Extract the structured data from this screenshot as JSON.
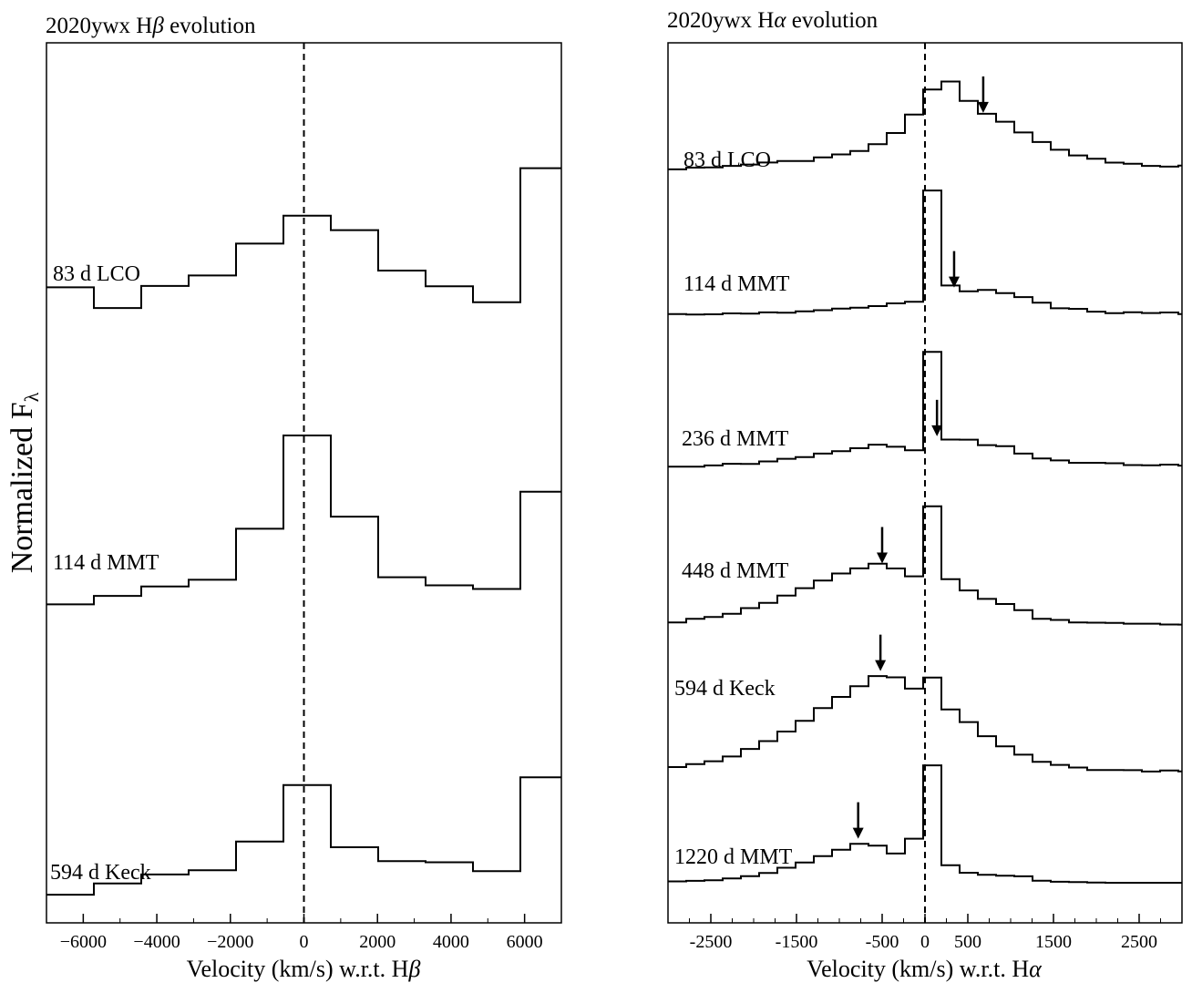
{
  "figure": {
    "ylabel": "Normalized F",
    "ylabel_sub": "λ"
  },
  "chart_data": [
    {
      "type": "line",
      "id": "hbeta",
      "title_prefix": "2020ywx H",
      "title_greek": "β",
      "title_suffix": " evolution",
      "xlabel_prefix": "Velocity (km/s) w.r.t. H",
      "xlabel_greek": "β",
      "xlim": [
        -7000,
        7000
      ],
      "xticks": [
        -6000,
        -4000,
        -2000,
        0,
        2000,
        4000,
        6000
      ],
      "xtick_labels": [
        "−6000",
        "−4000",
        "−2000",
        "0",
        "2000",
        "4000",
        "6000"
      ],
      "reference_line_x": 0,
      "series": [
        {
          "name": "83 d LCO",
          "noise": 9,
          "seed": 3,
          "points": [
            [
              -7000,
              0.3
            ],
            [
              -6000,
              0.26
            ],
            [
              -5000,
              0.24
            ],
            [
              -4000,
              0.38
            ],
            [
              -3000,
              0.4
            ],
            [
              -2000,
              0.52
            ],
            [
              -1000,
              0.56
            ],
            [
              -500,
              0.75
            ],
            [
              -150,
              0.97
            ],
            [
              0,
              1.0
            ],
            [
              200,
              0.83
            ],
            [
              500,
              0.67
            ],
            [
              1000,
              0.54
            ],
            [
              2000,
              0.4
            ],
            [
              3000,
              0.34
            ],
            [
              4000,
              0.3
            ],
            [
              4800,
              0.28
            ],
            [
              5500,
              0.45
            ],
            [
              5900,
              0.97
            ],
            [
              6100,
              0.97
            ],
            [
              6400,
              0.4
            ],
            [
              6800,
              0.18
            ],
            [
              7000,
              0.12
            ]
          ]
        },
        {
          "name": "114 d MMT",
          "noise": 12,
          "seed": 7,
          "points": [
            [
              -7000,
              0.22
            ],
            [
              -6000,
              0.2
            ],
            [
              -5000,
              0.25
            ],
            [
              -4000,
              0.28
            ],
            [
              -3000,
              0.32
            ],
            [
              -2000,
              0.5
            ],
            [
              -1000,
              0.76
            ],
            [
              -500,
              0.92
            ],
            [
              -150,
              1.0
            ],
            [
              0,
              0.98
            ],
            [
              300,
              0.83
            ],
            [
              600,
              0.68
            ],
            [
              1000,
              0.52
            ],
            [
              1500,
              0.4
            ],
            [
              2000,
              0.34
            ],
            [
              3000,
              0.3
            ],
            [
              4000,
              0.26
            ],
            [
              4700,
              0.26
            ],
            [
              5300,
              0.38
            ],
            [
              5800,
              0.72
            ],
            [
              6100,
              0.74
            ],
            [
              6400,
              0.5
            ],
            [
              6800,
              0.22
            ],
            [
              7000,
              0.15
            ]
          ]
        },
        {
          "name": "594 d Keck",
          "noise": 7,
          "seed": 11,
          "points": [
            [
              -7000,
              0.08
            ],
            [
              -6000,
              0.09
            ],
            [
              -5000,
              0.1
            ],
            [
              -4000,
              0.13
            ],
            [
              -3000,
              0.14
            ],
            [
              -2500,
              0.18
            ],
            [
              -2000,
              0.24
            ],
            [
              -1500,
              0.34
            ],
            [
              -1000,
              0.44
            ],
            [
              -600,
              0.46
            ],
            [
              -300,
              0.42
            ],
            [
              -100,
              0.4
            ],
            [
              0,
              1.0
            ],
            [
              100,
              0.98
            ],
            [
              200,
              0.3
            ],
            [
              400,
              0.24
            ],
            [
              1000,
              0.22
            ],
            [
              2000,
              0.2
            ],
            [
              3000,
              0.18
            ],
            [
              4000,
              0.16
            ],
            [
              5000,
              0.15
            ],
            [
              5800,
              0.14
            ],
            [
              5950,
              0.8
            ],
            [
              6050,
              0.82
            ],
            [
              6150,
              0.16
            ],
            [
              6500,
              0.13
            ],
            [
              7000,
              0.12
            ]
          ]
        }
      ]
    },
    {
      "type": "line",
      "id": "halpha",
      "title_prefix": "2020ywx H",
      "title_greek": "α",
      "title_suffix": " evolution",
      "xlabel_prefix": "Velocity (km/s) w.r.t. H",
      "xlabel_greek": "α",
      "xlim": [
        -3000,
        3000
      ],
      "xticks": [
        -2500,
        -1500,
        -500,
        0,
        500,
        1500,
        2500
      ],
      "xtick_labels": [
        "-2500",
        "-1500",
        "-500",
        "0",
        "500",
        "1500",
        "2500"
      ],
      "reference_line_x": 0,
      "series": [
        {
          "name": "83 d LCO",
          "noise": 1.2,
          "seed": 5,
          "arrow_x": 680,
          "points": [
            [
              -3000,
              0.1
            ],
            [
              -2500,
              0.12
            ],
            [
              -2000,
              0.14
            ],
            [
              -1500,
              0.18
            ],
            [
              -1000,
              0.23
            ],
            [
              -600,
              0.34
            ],
            [
              -300,
              0.52
            ],
            [
              -100,
              0.72
            ],
            [
              50,
              0.92
            ],
            [
              200,
              0.9
            ],
            [
              400,
              0.72
            ],
            [
              600,
              0.6
            ],
            [
              800,
              0.54
            ],
            [
              1000,
              0.44
            ],
            [
              1300,
              0.33
            ],
            [
              1600,
              0.24
            ],
            [
              2000,
              0.17
            ],
            [
              2400,
              0.14
            ],
            [
              2800,
              0.12
            ],
            [
              3000,
              0.12
            ]
          ]
        },
        {
          "name": "114 d MMT",
          "noise": 1.0,
          "seed": 9,
          "arrow_x": 340,
          "points": [
            [
              -3000,
              0.02
            ],
            [
              -2000,
              0.03
            ],
            [
              -1500,
              0.04
            ],
            [
              -1000,
              0.07
            ],
            [
              -500,
              0.1
            ],
            [
              -250,
              0.12
            ],
            [
              -120,
              0.16
            ],
            [
              -60,
              0.9
            ],
            [
              -20,
              1.0
            ],
            [
              40,
              0.72
            ],
            [
              120,
              0.28
            ],
            [
              300,
              0.2
            ],
            [
              600,
              0.22
            ],
            [
              900,
              0.18
            ],
            [
              1200,
              0.12
            ],
            [
              1500,
              0.07
            ],
            [
              2000,
              0.04
            ],
            [
              2500,
              0.03
            ],
            [
              3000,
              0.03
            ]
          ]
        },
        {
          "name": "236 d MMT",
          "noise": 1.0,
          "seed": 13,
          "arrow_x": 140,
          "points": [
            [
              -3000,
              0.02
            ],
            [
              -2500,
              0.03
            ],
            [
              -2000,
              0.05
            ],
            [
              -1500,
              0.09
            ],
            [
              -1000,
              0.15
            ],
            [
              -700,
              0.18
            ],
            [
              -400,
              0.17
            ],
            [
              -200,
              0.14
            ],
            [
              -120,
              0.3
            ],
            [
              -80,
              0.95
            ],
            [
              -40,
              1.0
            ],
            [
              20,
              0.6
            ],
            [
              100,
              0.22
            ],
            [
              400,
              0.22
            ],
            [
              800,
              0.15
            ],
            [
              850,
              0.2
            ],
            [
              900,
              0.14
            ],
            [
              1200,
              0.08
            ],
            [
              1600,
              0.05
            ],
            [
              2000,
              0.04
            ],
            [
              3000,
              0.03
            ]
          ]
        },
        {
          "name": "448 d MMT",
          "noise": 0.8,
          "seed": 17,
          "arrow_x": -500,
          "points": [
            [
              -3000,
              0.05
            ],
            [
              -2500,
              0.09
            ],
            [
              -2000,
              0.17
            ],
            [
              -1500,
              0.3
            ],
            [
              -1000,
              0.42
            ],
            [
              -700,
              0.48
            ],
            [
              -500,
              0.45
            ],
            [
              -300,
              0.4
            ],
            [
              -150,
              0.36
            ],
            [
              -60,
              0.65
            ],
            [
              -20,
              0.9
            ],
            [
              30,
              0.8
            ],
            [
              80,
              0.45
            ],
            [
              200,
              0.35
            ],
            [
              500,
              0.25
            ],
            [
              800,
              0.16
            ],
            [
              900,
              0.22
            ],
            [
              950,
              0.16
            ],
            [
              1200,
              0.08
            ],
            [
              1600,
              0.05
            ],
            [
              2000,
              0.04
            ],
            [
              3000,
              0.03
            ]
          ]
        },
        {
          "name": "594 d Keck",
          "noise": 1.0,
          "seed": 21,
          "arrow_x": -520,
          "points": [
            [
              -3000,
              0.05
            ],
            [
              -2500,
              0.1
            ],
            [
              -2000,
              0.22
            ],
            [
              -1500,
              0.4
            ],
            [
              -1000,
              0.6
            ],
            [
              -700,
              0.72
            ],
            [
              -500,
              0.73
            ],
            [
              -300,
              0.66
            ],
            [
              -150,
              0.58
            ],
            [
              -100,
              0.56
            ],
            [
              -40,
              0.68
            ],
            [
              0,
              0.74
            ],
            [
              50,
              0.62
            ],
            [
              150,
              0.5
            ],
            [
              400,
              0.38
            ],
            [
              700,
              0.25
            ],
            [
              850,
              0.2
            ],
            [
              900,
              0.24
            ],
            [
              950,
              0.18
            ],
            [
              1200,
              0.1
            ],
            [
              1600,
              0.05
            ],
            [
              2000,
              0.03
            ],
            [
              3000,
              0.02
            ]
          ]
        },
        {
          "name": "1220 d MMT",
          "noise": 0,
          "seed": 25,
          "arrow_x": -780,
          "points": [
            [
              -3000,
              0.03
            ],
            [
              -2500,
              0.04
            ],
            [
              -2000,
              0.08
            ],
            [
              -1500,
              0.17
            ],
            [
              -1000,
              0.28
            ],
            [
              -800,
              0.32
            ],
            [
              -600,
              0.28
            ],
            [
              -400,
              0.22
            ],
            [
              -250,
              0.22
            ],
            [
              -220,
              0.45
            ],
            [
              -150,
              0.52
            ],
            [
              -80,
              0.72
            ],
            [
              -30,
              0.9
            ],
            [
              20,
              0.78
            ],
            [
              70,
              0.6
            ],
            [
              120,
              0.18
            ],
            [
              300,
              0.1
            ],
            [
              600,
              0.08
            ],
            [
              800,
              0.06
            ],
            [
              900,
              0.1
            ],
            [
              1000,
              0.08
            ],
            [
              1100,
              0.05
            ],
            [
              1300,
              0.03
            ],
            [
              2000,
              0.02
            ],
            [
              3000,
              0.02
            ]
          ]
        }
      ]
    }
  ]
}
